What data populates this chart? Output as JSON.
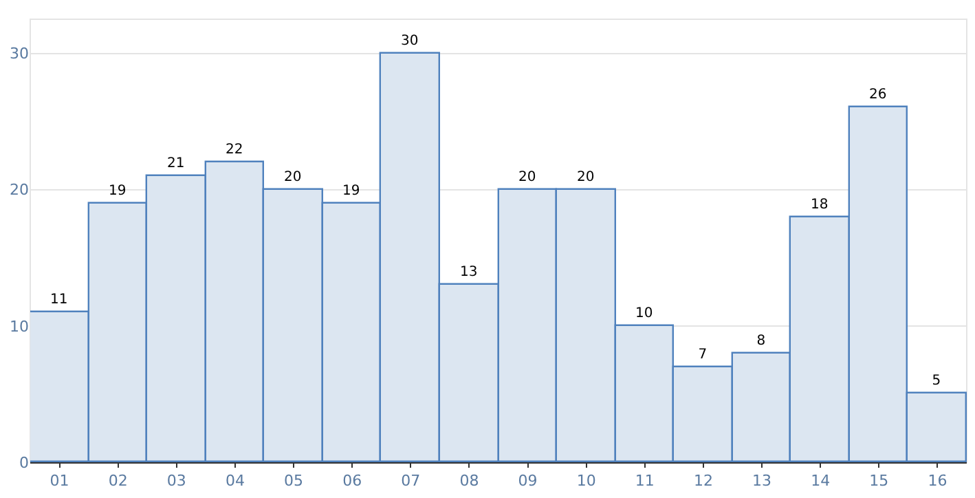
{
  "chart_data": {
    "type": "bar",
    "categories": [
      "01",
      "02",
      "03",
      "04",
      "05",
      "06",
      "07",
      "08",
      "09",
      "10",
      "11",
      "12",
      "13",
      "14",
      "15",
      "16"
    ],
    "values": [
      11,
      19,
      21,
      22,
      20,
      19,
      30,
      13,
      20,
      20,
      10,
      7,
      8,
      18,
      26,
      5
    ],
    "color": "#dce6f1",
    "ylim": [
      0,
      32.5
    ],
    "yticks": [
      0,
      10,
      20,
      30
    ],
    "grid": "y",
    "data_labels": true,
    "legend": false
  }
}
